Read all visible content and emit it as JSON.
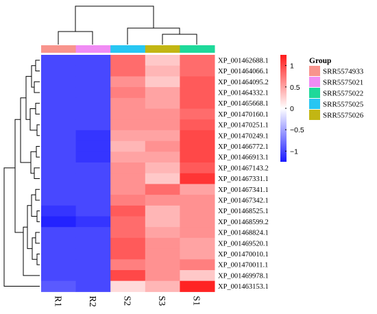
{
  "chart_data": {
    "type": "heatmap",
    "rows": [
      "XP_001462688.1",
      "XP_001464066.1",
      "XP_001464095.2",
      "XP_001464332.1",
      "XP_001465668.1",
      "XP_001470160.1",
      "XP_001470251.1",
      "XP_001470249.1",
      "XP_001466772.1",
      "XP_001466913.1",
      "XP_001467143.2",
      "XP_001467331.1",
      "XP_001467341.1",
      "XP_001467342.1",
      "XP_001468525.1",
      "XP_001468599.2",
      "XP_001468824.1",
      "XP_001469520.1",
      "XP_001470010.1",
      "XP_001470011.1",
      "XP_001469978.1",
      "XP_001463153.1"
    ],
    "columns": [
      "R1",
      "R2",
      "S2",
      "S3",
      "S1"
    ],
    "column_groups": [
      "SRR5574933",
      "SRR5575021",
      "SRR5575025",
      "SRR5575026",
      "SRR5575022"
    ],
    "values": [
      [
        -1.0,
        -1.0,
        0.8,
        0.3,
        0.8
      ],
      [
        -1.0,
        -1.0,
        0.8,
        0.4,
        0.8
      ],
      [
        -1.0,
        -1.0,
        0.6,
        0.3,
        0.9
      ],
      [
        -1.0,
        -1.0,
        0.7,
        0.5,
        0.9
      ],
      [
        -1.0,
        -1.0,
        0.6,
        0.5,
        0.9
      ],
      [
        -1.0,
        -1.0,
        0.6,
        0.6,
        0.8
      ],
      [
        -1.0,
        -1.0,
        0.6,
        0.6,
        0.9
      ],
      [
        -1.0,
        -1.1,
        0.5,
        0.5,
        1.0
      ],
      [
        -1.0,
        -1.1,
        0.4,
        0.6,
        1.0
      ],
      [
        -1.0,
        -1.1,
        0.5,
        0.5,
        1.0
      ],
      [
        -1.0,
        -1.0,
        0.6,
        0.4,
        0.9
      ],
      [
        -1.0,
        -1.0,
        0.6,
        0.3,
        1.1
      ],
      [
        -1.0,
        -1.0,
        0.6,
        0.8,
        0.5
      ],
      [
        -1.0,
        -1.0,
        0.7,
        0.6,
        0.6
      ],
      [
        -1.1,
        -1.0,
        0.9,
        0.4,
        0.6
      ],
      [
        -1.2,
        -1.1,
        0.8,
        0.4,
        0.6
      ],
      [
        -1.0,
        -1.0,
        0.8,
        0.5,
        0.6
      ],
      [
        -1.0,
        -1.0,
        0.9,
        0.6,
        0.5
      ],
      [
        -1.0,
        -1.0,
        0.9,
        0.6,
        0.5
      ],
      [
        -1.0,
        -1.0,
        0.7,
        0.6,
        0.7
      ],
      [
        -1.0,
        -1.0,
        1.0,
        0.6,
        0.3
      ],
      [
        -0.9,
        -1.0,
        0.2,
        0.4,
        1.2
      ]
    ],
    "colorbar": {
      "ticks": [
        1,
        0.5,
        0,
        -0.5,
        -1
      ],
      "tick_labels": [
        "1",
        "0.5",
        "0",
        "−0.5",
        "−1"
      ],
      "min": -1.25,
      "max": 1.25
    },
    "colors": {
      "low": "#1a1aff",
      "mid": "#ffffff",
      "high": "#ff1a1a"
    },
    "legend": {
      "title": "Group",
      "items": [
        {
          "label": "SRR5574933",
          "color": "#f8948d"
        },
        {
          "label": "SRR5575021",
          "color": "#f08cf4"
        },
        {
          "label": "SRR5575022",
          "color": "#1ed99a"
        },
        {
          "label": "SRR5575025",
          "color": "#27c6f2"
        },
        {
          "label": "SRR5575026",
          "color": "#c2b613"
        }
      ]
    },
    "group_colors": [
      "#f8948d",
      "#f08cf4",
      "#27c6f2",
      "#c2b613",
      "#1ed99a"
    ],
    "grid": false,
    "legend_position": "right"
  }
}
